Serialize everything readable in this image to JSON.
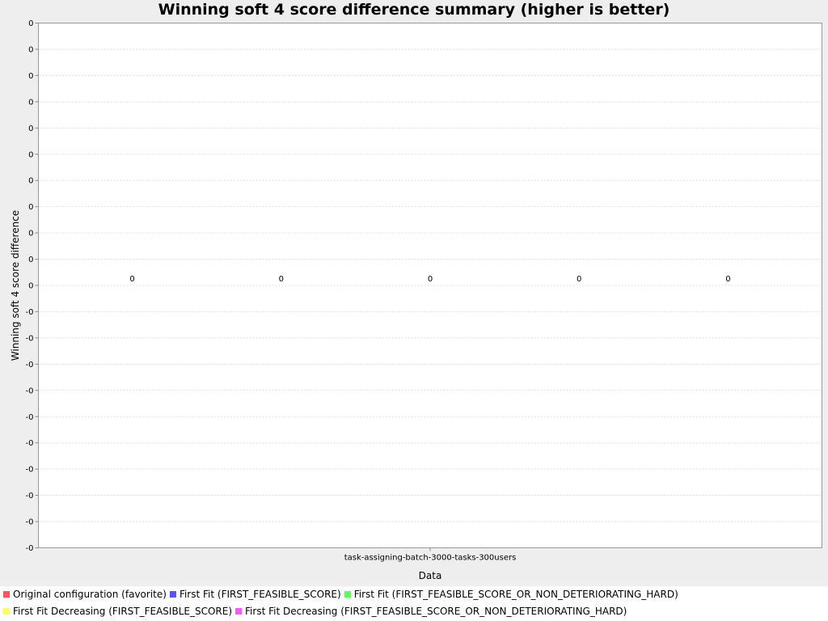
{
  "chart_data": {
    "type": "bar",
    "title": "Winning soft 4 score difference summary (higher is better)",
    "xlabel": "Data",
    "ylabel": "Winning soft 4 score difference",
    "categories": [
      "task-assigning-batch-3000-tasks-300users"
    ],
    "y_tick_labels": [
      "0",
      "0",
      "0",
      "0",
      "0",
      "0",
      "0",
      "0",
      "0",
      "0",
      "0",
      "-0",
      "-0",
      "-0",
      "-0",
      "-0",
      "-0",
      "-0",
      "-0",
      "-0",
      "-0"
    ],
    "grid": true,
    "legend_placement": "bottom",
    "series": [
      {
        "name": "Original configuration (favorite)",
        "color": "#ff5555",
        "values": [
          0
        ],
        "label": "0"
      },
      {
        "name": "First Fit (FIRST_FEASIBLE_SCORE)",
        "color": "#5555ff",
        "values": [
          0
        ],
        "label": "0"
      },
      {
        "name": "First Fit (FIRST_FEASIBLE_SCORE_OR_NON_DETERIORATING_HARD)",
        "color": "#55ff55",
        "values": [
          0
        ],
        "label": "0"
      },
      {
        "name": "First Fit Decreasing (FIRST_FEASIBLE_SCORE)",
        "color": "#ffff55",
        "values": [
          0
        ],
        "label": "0"
      },
      {
        "name": "First Fit Decreasing (FIRST_FEASIBLE_SCORE_OR_NON_DETERIORATING_HARD)",
        "color": "#ff55ff",
        "values": [
          0
        ],
        "label": "0"
      }
    ]
  }
}
